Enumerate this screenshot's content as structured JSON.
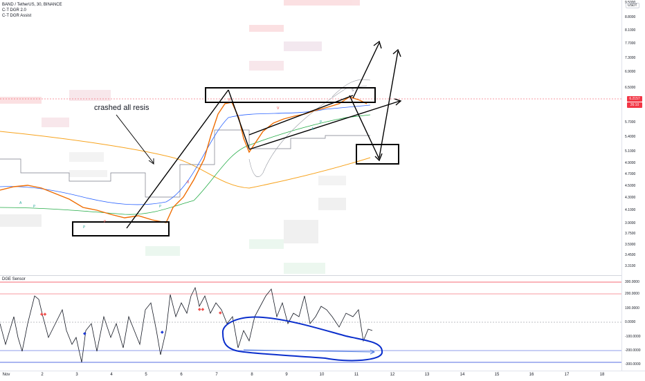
{
  "header": {
    "symbol_line": "BAND / TetherUS, 30, BINANCE",
    "indicator1": "C-T DGR 2.0",
    "indicator2": "C-T DGR Assist"
  },
  "currency_badge": "USDT",
  "price_axis": [
    "9.5000",
    "8.8000",
    "8.1000",
    "7.7000",
    "7.3000",
    "6.9000",
    "6.5000",
    "5.7000",
    "5.4000",
    "5.1000",
    "4.9000",
    "4.7000",
    "4.5000",
    "4.3000",
    "4.1000",
    "3.9000",
    "3.7500",
    "3.5900",
    "3.4500",
    "3.3100"
  ],
  "current_price": "6.2157",
  "countdown": "26:10",
  "annotation": "crashed all resis",
  "oscillator": {
    "title": "DGE Sensor",
    "axis": [
      "300.0000",
      "200.0000",
      "100.0000",
      "0.0000",
      "-100.0000",
      "-200.0000",
      "-300.0000"
    ]
  },
  "time_axis": [
    "Nov",
    "2",
    "3",
    "4",
    "5",
    "6",
    "7",
    "8",
    "9",
    "10",
    "11",
    "12",
    "13",
    "14",
    "15",
    "16",
    "17",
    "18"
  ],
  "colors": {
    "up_bar": "#26a69a",
    "down_bar": "#ef5350",
    "annotation_box": "#000000",
    "oscillator_line": "#131722",
    "oscillator_upper": "#f23645",
    "oscillator_lower": "#1e3ad6",
    "blue_annotation": "#0a2ecc",
    "ma_orange": "#f7a21b",
    "price_tag": "#f23645"
  }
}
